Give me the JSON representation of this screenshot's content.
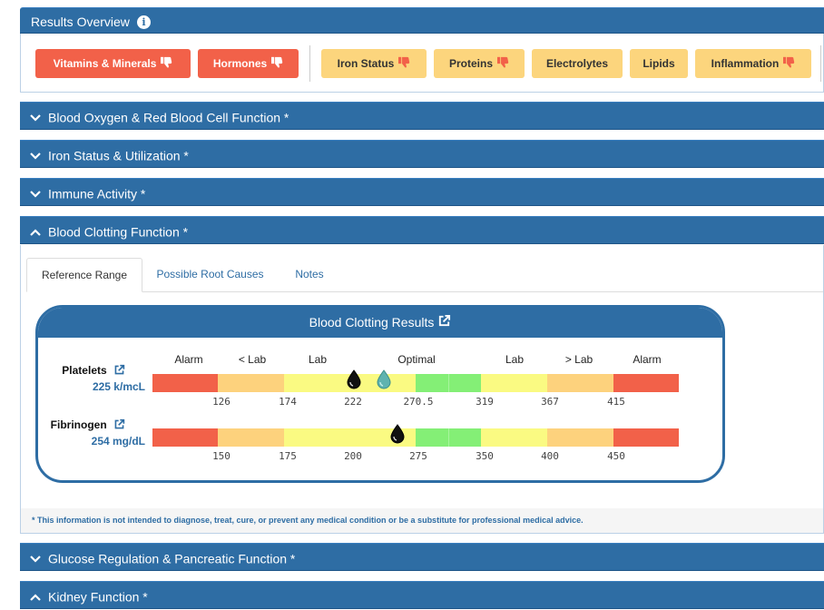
{
  "overview": {
    "title": "Results Overview",
    "info_icon": "info-icon",
    "chips_red": [
      {
        "label": "Vitamins & Minerals"
      },
      {
        "label": "Hormones"
      }
    ],
    "chips_yellow": [
      {
        "label": "Iron Status",
        "thumb": true
      },
      {
        "label": "Proteins",
        "thumb": true
      },
      {
        "label": "Electrolytes",
        "thumb": false
      },
      {
        "label": "Lipids",
        "thumb": false
      },
      {
        "label": "Inflammation",
        "thumb": true
      }
    ]
  },
  "sections": {
    "blood_oxygen": "Blood Oxygen & Red Blood Cell Function *",
    "iron_status": "Iron Status & Utilization *",
    "immune": "Immune Activity *",
    "clotting": "Blood Clotting Function *",
    "glucose": "Glucose Regulation & Pancreatic Function *",
    "kidney": "Kidney Function *"
  },
  "clotting": {
    "tabs": [
      "Reference Range",
      "Possible Root Causes",
      "Notes"
    ],
    "active_tab": "Reference Range",
    "card_title": "Blood Clotting Results",
    "range_labels": [
      "Alarm",
      "< Lab",
      "Lab",
      "Optimal",
      "Lab",
      "> Lab",
      "Alarm"
    ],
    "platelets": {
      "name": "Platelets",
      "value": "225 k/mcL",
      "numeric": 225,
      "ticks": [
        "126",
        "174",
        "222",
        "270.5",
        "319",
        "367",
        "415"
      ]
    },
    "fibrinogen": {
      "name": "Fibrinogen",
      "value": "254 mg/dL",
      "numeric": 254,
      "ticks": [
        "150",
        "175",
        "200",
        "275",
        "350",
        "400",
        "450"
      ]
    },
    "disclaimer": "* This information is not intended to diagnose, treat, cure, or prevent any medical condition or be a substitute for professional medical advice."
  },
  "colors": {
    "header": "#2e6da4",
    "alarm": "#f26149",
    "outside_lab": "#fdd27d",
    "lab": "#fafa82",
    "optimal": "#84ef76"
  }
}
